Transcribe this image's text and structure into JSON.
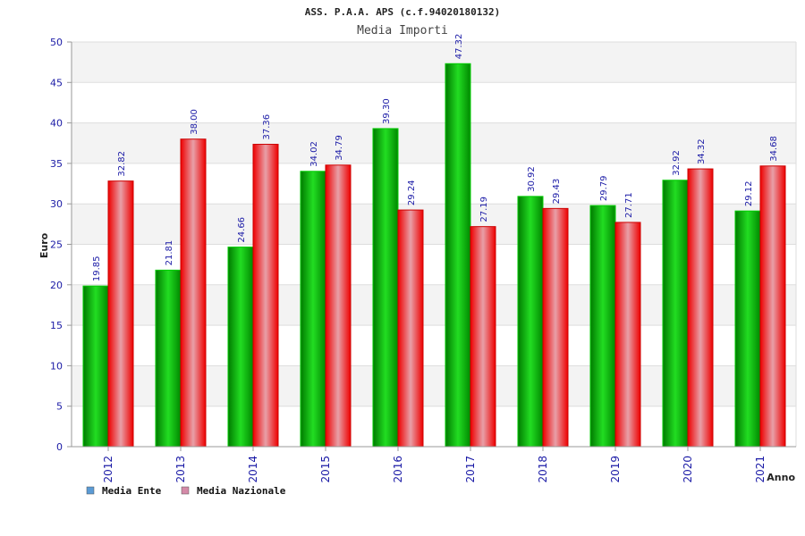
{
  "chart_data": {
    "type": "bar",
    "title": "ASS. P.A.A. APS (c.f.94020180132)",
    "subtitle": "Media Importi",
    "xlabel": "Anno",
    "ylabel": "Euro",
    "ylim": [
      0,
      50
    ],
    "yticks": [
      0,
      5,
      10,
      15,
      20,
      25,
      30,
      35,
      40,
      45,
      50
    ],
    "grid": true,
    "legend_position": "bottom-left",
    "categories": [
      "2012",
      "2013",
      "2014",
      "2015",
      "2016",
      "2017",
      "2018",
      "2019",
      "2020",
      "2021"
    ],
    "series": [
      {
        "name": "Media Ente",
        "color": "#00bb00",
        "legend_color": "#5b9bd5",
        "values": [
          19.85,
          21.81,
          24.66,
          34.02,
          39.3,
          47.32,
          30.92,
          29.79,
          32.92,
          29.12
        ],
        "labels": [
          "19.85",
          "21.81",
          "24.66",
          "34.02",
          "39.30",
          "47.32",
          "30.92",
          "29.79",
          "32.92",
          "29.12"
        ]
      },
      {
        "name": "Media Nazionale",
        "color": "#ee1111",
        "legend_color": "#d48aa8",
        "values": [
          32.82,
          38.0,
          37.36,
          34.79,
          29.24,
          27.19,
          29.43,
          27.71,
          34.32,
          34.68
        ],
        "labels": [
          "32.82",
          "38.00",
          "37.36",
          "34.79",
          "29.24",
          "27.19",
          "29.43",
          "27.71",
          "34.32",
          "34.68"
        ]
      }
    ]
  }
}
